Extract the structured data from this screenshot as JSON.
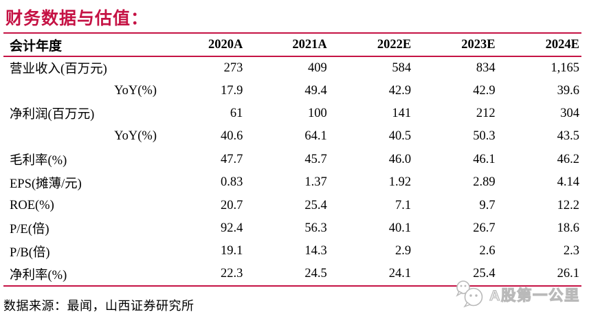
{
  "chart_data": {
    "type": "table",
    "title": "财务数据与估值：",
    "columns": [
      "会计年度",
      "2020A",
      "2021A",
      "2022E",
      "2023E",
      "2024E"
    ],
    "rows": [
      {
        "label": "营业收入(百万元)",
        "indent": false,
        "values": [
          "273",
          "409",
          "584",
          "834",
          "1,165"
        ]
      },
      {
        "label": "YoY(%)",
        "indent": true,
        "values": [
          "17.9",
          "49.4",
          "42.9",
          "42.9",
          "39.6"
        ]
      },
      {
        "label": "净利润(百万元)",
        "indent": false,
        "values": [
          "61",
          "100",
          "141",
          "212",
          "304"
        ]
      },
      {
        "label": "YoY(%)",
        "indent": true,
        "values": [
          "40.6",
          "64.1",
          "40.5",
          "50.3",
          "43.5"
        ]
      },
      {
        "label": "毛利率(%)",
        "indent": false,
        "values": [
          "47.7",
          "45.7",
          "46.0",
          "46.1",
          "46.2"
        ]
      },
      {
        "label": "EPS(摊薄/元)",
        "indent": false,
        "values": [
          "0.83",
          "1.37",
          "1.92",
          "2.89",
          "4.14"
        ]
      },
      {
        "label": "ROE(%)",
        "indent": false,
        "values": [
          "20.7",
          "25.4",
          "7.1",
          "9.7",
          "12.2"
        ]
      },
      {
        "label": "P/E(倍)",
        "indent": false,
        "values": [
          "92.4",
          "56.3",
          "40.1",
          "26.7",
          "18.6"
        ]
      },
      {
        "label": "P/B(倍)",
        "indent": false,
        "values": [
          "19.1",
          "14.3",
          "2.9",
          "2.6",
          "2.3"
        ]
      },
      {
        "label": "净利率(%)",
        "indent": false,
        "values": [
          "22.3",
          "24.5",
          "24.1",
          "25.4",
          "26.1"
        ]
      }
    ],
    "source_note": "数据来源：最闻，山西证券研究所"
  },
  "watermark": {
    "icon": "wechat-logo",
    "text": "A股第一公里"
  },
  "colors": {
    "accent": "#C51244",
    "text": "#000000",
    "watermark_gray": "#B9B9B9"
  }
}
